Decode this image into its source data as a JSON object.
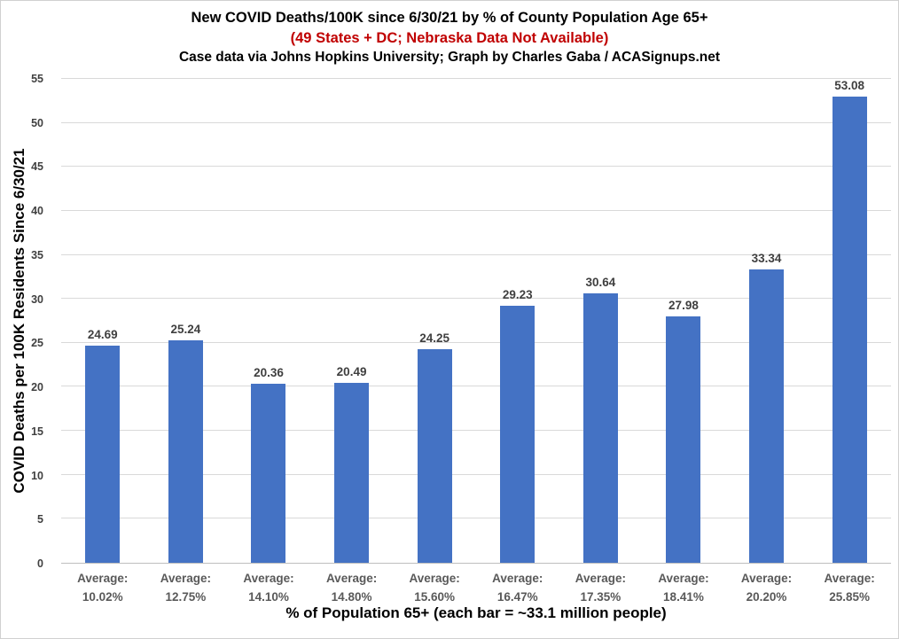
{
  "header": {
    "title": "New COVID Deaths/100K since 6/30/21 by % of County Population Age 65+",
    "subtitle": "(49 States + DC; Nebraska Data Not Available)",
    "credit": "Case data via Johns Hopkins University; Graph by Charles Gaba / ACASignups.net"
  },
  "chart_data": {
    "type": "bar",
    "title": "New COVID Deaths/100K since 6/30/21 by % of County Population Age 65+",
    "subtitle": "(49 States + DC; Nebraska Data Not Available)",
    "credit": "Case data via Johns Hopkins University; Graph by Charles Gaba / ACASignups.net",
    "category_prefix": "Average:",
    "categories": [
      "10.02%",
      "12.75%",
      "14.10%",
      "14.80%",
      "15.60%",
      "16.47%",
      "17.35%",
      "18.41%",
      "20.20%",
      "25.85%"
    ],
    "values": [
      24.69,
      25.24,
      20.36,
      20.49,
      24.25,
      29.23,
      30.64,
      27.98,
      33.34,
      53.08
    ],
    "data_labels": [
      "24.69",
      "25.24",
      "20.36",
      "20.49",
      "24.25",
      "29.23",
      "30.64",
      "27.98",
      "33.34",
      "53.08"
    ],
    "xlabel": "% of Population 65+ (each bar = ~33.1 million people)",
    "ylabel": "COVID Deaths per 100K Residents Since 6/30/21",
    "ylim": [
      0,
      55
    ],
    "ytick_step": 5,
    "grid": true,
    "legend": false,
    "colors": {
      "bar": "#4472C4",
      "subtitle_red": "#C00000",
      "gridline": "#D9D9D9",
      "axis_line": "#BFBFBF",
      "tick_label": "#404040",
      "category_label": "#595959",
      "data_label": "#3F3F3F"
    }
  }
}
